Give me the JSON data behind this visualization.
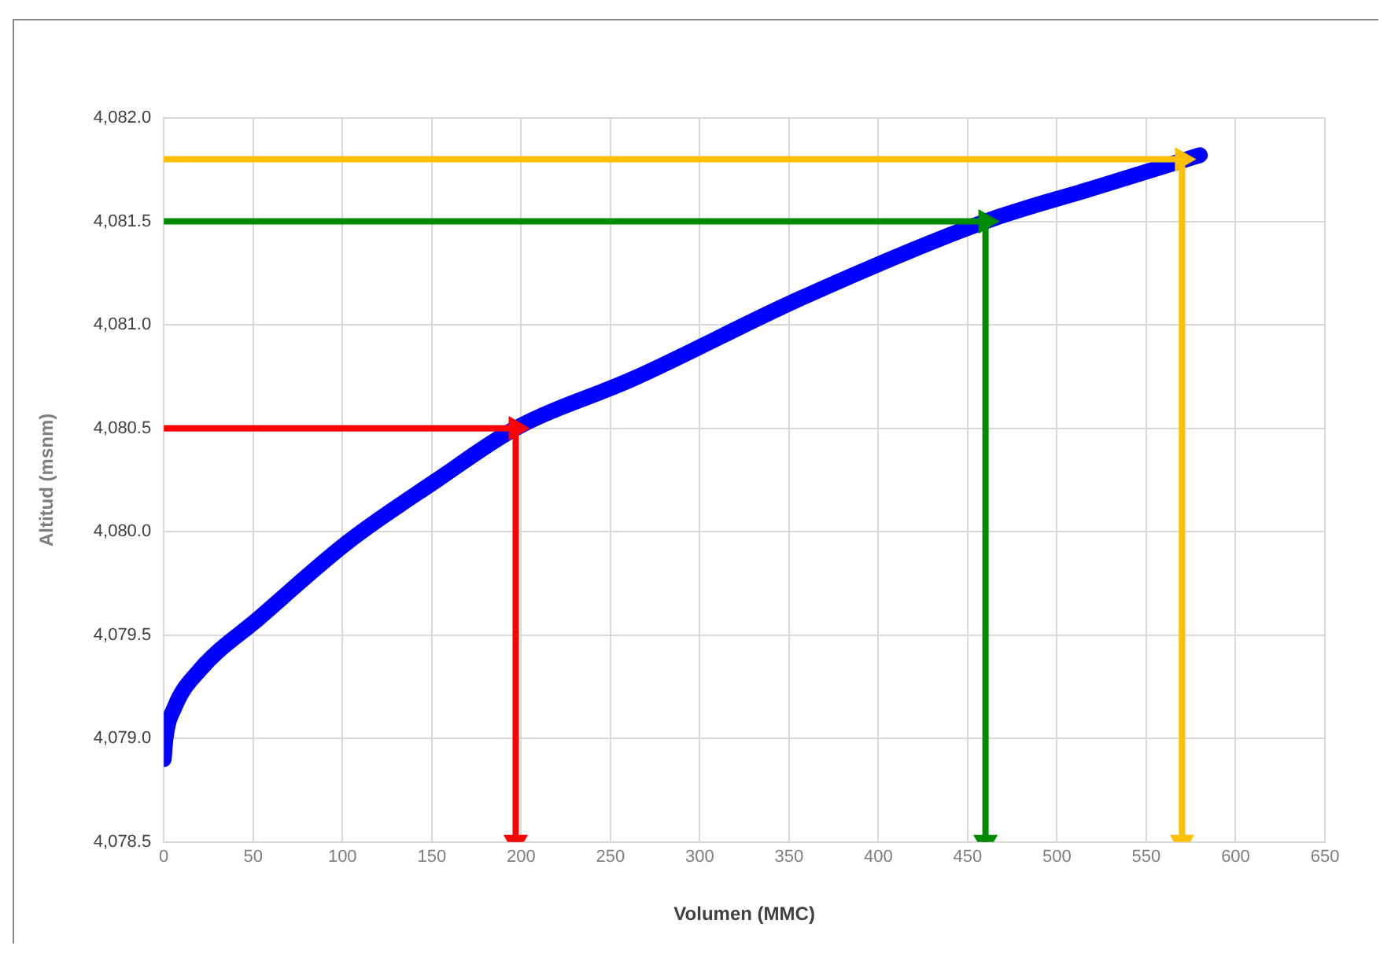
{
  "chart_data": {
    "type": "line",
    "xlabel": "Volumen (MMC)",
    "ylabel": "Altitud (msnm)",
    "xlim": [
      0,
      650
    ],
    "xticks": [
      0,
      50,
      100,
      150,
      200,
      250,
      300,
      350,
      400,
      450,
      500,
      550,
      600,
      650
    ],
    "ylim": [
      4078.5,
      4082.0
    ],
    "yticks": [
      {
        "value": 4078.5,
        "label": "4,078.5"
      },
      {
        "value": 4079.0,
        "label": "4,079.0"
      },
      {
        "value": 4079.5,
        "label": "4,079.5"
      },
      {
        "value": 4080.0,
        "label": "4,080.0"
      },
      {
        "value": 4080.5,
        "label": "4,080.5"
      },
      {
        "value": 4081.0,
        "label": "4,081.0"
      },
      {
        "value": 4081.5,
        "label": "4,081.5"
      },
      {
        "value": 4082.0,
        "label": "4,082.0"
      }
    ],
    "grid": true,
    "legend": false,
    "series": [
      {
        "color": "#0000ff",
        "marker": "none",
        "x": [
          0,
          1,
          6,
          20,
          53,
          103,
          153,
          197,
          263,
          357,
          460,
          520,
          580
        ],
        "values": [
          4078.9,
          4079.0,
          4079.15,
          4079.33,
          4079.58,
          4079.95,
          4080.25,
          4080.5,
          4080.74,
          4081.13,
          4081.5,
          4081.66,
          4081.82
        ]
      },
      {
        "color": "#ff0000",
        "marker": "triangle",
        "x": [
          0,
          197,
          197
        ],
        "values": [
          4080.5,
          4080.5,
          4078.5
        ]
      },
      {
        "color": "#008a00",
        "marker": "triangle",
        "x": [
          0,
          460,
          460
        ],
        "values": [
          4081.5,
          4081.5,
          4078.5
        ]
      },
      {
        "color": "#ffc000",
        "marker": "triangle",
        "x": [
          0,
          570,
          570
        ],
        "values": [
          4081.8,
          4081.8,
          4078.5
        ]
      }
    ]
  }
}
